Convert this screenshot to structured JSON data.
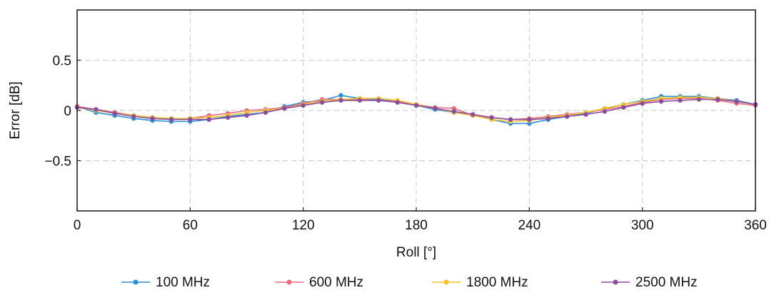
{
  "chart_data": {
    "type": "line",
    "title": "",
    "xlabel": "Roll [°]",
    "ylabel": "Error [dB]",
    "xlim": [
      0,
      360
    ],
    "ylim": [
      -1,
      1
    ],
    "grid": true,
    "legend_position": "bottom",
    "x_ticks": [
      0,
      60,
      120,
      180,
      240,
      300,
      360
    ],
    "x_tick_labels": [
      "0",
      "60",
      "120",
      "180",
      "240",
      "300",
      "360"
    ],
    "y_ticks": [
      0.5,
      0,
      -0.5
    ],
    "y_tick_labels": [
      "0.5",
      "0",
      "−0.5"
    ],
    "x": [
      0,
      10,
      20,
      30,
      40,
      50,
      60,
      70,
      80,
      90,
      100,
      110,
      120,
      130,
      140,
      150,
      160,
      170,
      180,
      190,
      200,
      210,
      220,
      230,
      240,
      250,
      260,
      270,
      280,
      290,
      300,
      310,
      320,
      330,
      340,
      350,
      360
    ],
    "series": [
      {
        "name": "100 MHz",
        "color": "#2a8fd8",
        "values": [
          0.04,
          -0.02,
          -0.05,
          -0.08,
          -0.1,
          -0.11,
          -0.11,
          -0.09,
          -0.06,
          -0.04,
          -0.02,
          0.04,
          0.08,
          0.1,
          0.15,
          0.12,
          0.11,
          0.09,
          0.05,
          0.01,
          -0.02,
          -0.04,
          -0.09,
          -0.13,
          -0.13,
          -0.09,
          -0.06,
          -0.03,
          0.02,
          0.06,
          0.1,
          0.14,
          0.14,
          0.14,
          0.12,
          0.1,
          0.06
        ]
      },
      {
        "name": "600 MHz",
        "color": "#e86b7e",
        "values": [
          0.04,
          0.01,
          -0.02,
          -0.05,
          -0.07,
          -0.08,
          -0.08,
          -0.05,
          -0.03,
          0.0,
          0.01,
          0.03,
          0.07,
          0.11,
          0.11,
          0.11,
          0.1,
          0.09,
          0.06,
          0.03,
          0.02,
          -0.05,
          -0.07,
          -0.09,
          -0.08,
          -0.06,
          -0.04,
          -0.02,
          0.01,
          0.04,
          0.08,
          0.11,
          0.12,
          0.12,
          0.1,
          0.07,
          0.05
        ]
      },
      {
        "name": "1800 MHz",
        "color": "#f2c22e",
        "values": [
          0.03,
          0.0,
          -0.03,
          -0.05,
          -0.07,
          -0.08,
          -0.08,
          -0.07,
          -0.05,
          -0.02,
          0.0,
          0.02,
          0.06,
          0.09,
          0.11,
          0.12,
          0.12,
          0.1,
          0.06,
          0.02,
          -0.02,
          -0.05,
          -0.09,
          -0.11,
          -0.1,
          -0.07,
          -0.05,
          -0.02,
          0.02,
          0.06,
          0.09,
          0.12,
          0.13,
          0.13,
          0.12,
          0.09,
          0.06
        ]
      },
      {
        "name": "2500 MHz",
        "color": "#8a4d9e",
        "values": [
          0.03,
          0.01,
          -0.03,
          -0.06,
          -0.08,
          -0.09,
          -0.09,
          -0.09,
          -0.07,
          -0.05,
          -0.02,
          0.02,
          0.05,
          0.08,
          0.1,
          0.1,
          0.1,
          0.08,
          0.05,
          0.02,
          -0.01,
          -0.04,
          -0.07,
          -0.09,
          -0.09,
          -0.08,
          -0.06,
          -0.04,
          -0.01,
          0.03,
          0.07,
          0.09,
          0.1,
          0.11,
          0.11,
          0.09,
          0.06
        ]
      }
    ]
  }
}
